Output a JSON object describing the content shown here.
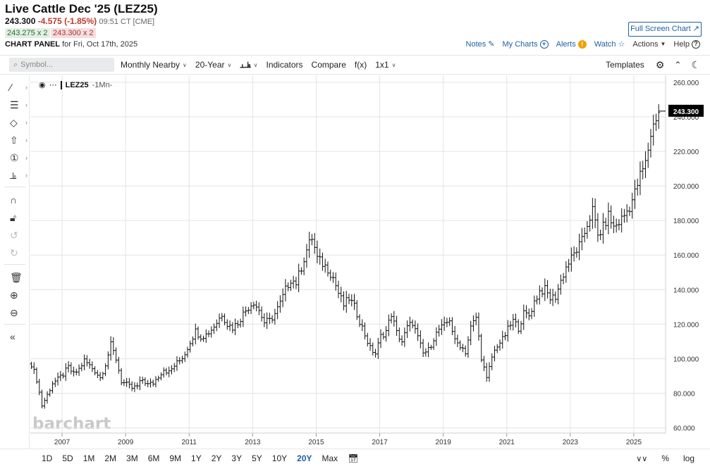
{
  "header": {
    "title": "Live Cattle Dec '25 (LEZ25)",
    "last": "243.300",
    "change": "-4.575 (-1.85%)",
    "time": "09:51 CT [CME]",
    "bid": "243.275 x 2",
    "ask": "243.300 x 2",
    "panel_label": "CHART PANEL",
    "panel_date": "for Fri, Oct 17th, 2025"
  },
  "actions": {
    "fullscreen": "Full Screen Chart",
    "notes": "Notes",
    "my_charts": "My Charts",
    "alerts": "Alerts",
    "watch": "Watch",
    "actions": "Actions",
    "help": "Help"
  },
  "toolbar": {
    "search_placeholder": "Symbol...",
    "period": "Monthly Nearby",
    "range": "20-Year",
    "indicators": "Indicators",
    "compare": "Compare",
    "fx": "f(x)",
    "layout": "1x1",
    "templates": "Templates"
  },
  "legend": {
    "symbol": "LEZ25",
    "period": "-1Mn-"
  },
  "watermark": "barchart",
  "ranges": [
    "1D",
    "5D",
    "1M",
    "2M",
    "3M",
    "6M",
    "9M",
    "1Y",
    "2Y",
    "3Y",
    "5Y",
    "10Y",
    "20Y",
    "Max"
  ],
  "active_range": "20Y",
  "bottom_right": {
    "percent": "%",
    "log": "log"
  },
  "colors": {
    "accent": "#1e5fa8",
    "down": "#c0392b",
    "bar": "#111111",
    "price_tag": "#000000"
  },
  "chart_data": {
    "type": "bar",
    "subtype": "ohlc",
    "period": "monthly",
    "x_ticks": [
      "2007",
      "2009",
      "2011",
      "2013",
      "2015",
      "2017",
      "2019",
      "2021",
      "2023",
      "2025"
    ],
    "y_ticks": [
      "60.000",
      "80.000",
      "100.000",
      "120.000",
      "140.000",
      "160.000",
      "180.000",
      "200.000",
      "220.000",
      "240.000",
      "260.000"
    ],
    "ylim": [
      57,
      264
    ],
    "xlim": [
      "2006-01",
      "2025-12"
    ],
    "last_price_label": "243.300",
    "grid": true,
    "series": [
      {
        "values": [
          {
            "t": "2006-01",
            "c": 97
          },
          {
            "t": "2006-03",
            "c": 88
          },
          {
            "t": "2006-05",
            "c": 73
          },
          {
            "t": "2006-07",
            "c": 79
          },
          {
            "t": "2006-09",
            "c": 86
          },
          {
            "t": "2006-11",
            "c": 88
          },
          {
            "t": "2007-01",
            "c": 91
          },
          {
            "t": "2007-03",
            "c": 95
          },
          {
            "t": "2007-05",
            "c": 91
          },
          {
            "t": "2007-07",
            "c": 94
          },
          {
            "t": "2007-09",
            "c": 99
          },
          {
            "t": "2007-11",
            "c": 96
          },
          {
            "t": "2008-01",
            "c": 93
          },
          {
            "t": "2008-03",
            "c": 89
          },
          {
            "t": "2008-05",
            "c": 97
          },
          {
            "t": "2008-07",
            "c": 108
          },
          {
            "t": "2008-09",
            "c": 100
          },
          {
            "t": "2008-11",
            "c": 87
          },
          {
            "t": "2009-01",
            "c": 85
          },
          {
            "t": "2009-03",
            "c": 83
          },
          {
            "t": "2009-05",
            "c": 84
          },
          {
            "t": "2009-07",
            "c": 88
          },
          {
            "t": "2009-09",
            "c": 85
          },
          {
            "t": "2009-11",
            "c": 86
          },
          {
            "t": "2010-01",
            "c": 90
          },
          {
            "t": "2010-03",
            "c": 94
          },
          {
            "t": "2010-05",
            "c": 92
          },
          {
            "t": "2010-07",
            "c": 96
          },
          {
            "t": "2010-09",
            "c": 99
          },
          {
            "t": "2010-11",
            "c": 103
          },
          {
            "t": "2011-01",
            "c": 110
          },
          {
            "t": "2011-03",
            "c": 116
          },
          {
            "t": "2011-05",
            "c": 113
          },
          {
            "t": "2011-07",
            "c": 114
          },
          {
            "t": "2011-09",
            "c": 117
          },
          {
            "t": "2011-11",
            "c": 121
          },
          {
            "t": "2012-01",
            "c": 126
          },
          {
            "t": "2012-03",
            "c": 120
          },
          {
            "t": "2012-05",
            "c": 118
          },
          {
            "t": "2012-07",
            "c": 121
          },
          {
            "t": "2012-09",
            "c": 126
          },
          {
            "t": "2012-11",
            "c": 130
          },
          {
            "t": "2013-01",
            "c": 133
          },
          {
            "t": "2013-03",
            "c": 128
          },
          {
            "t": "2013-05",
            "c": 121
          },
          {
            "t": "2013-07",
            "c": 122
          },
          {
            "t": "2013-09",
            "c": 126
          },
          {
            "t": "2013-11",
            "c": 132
          },
          {
            "t": "2014-01",
            "c": 140
          },
          {
            "t": "2014-03",
            "c": 146
          },
          {
            "t": "2014-05",
            "c": 144
          },
          {
            "t": "2014-07",
            "c": 153
          },
          {
            "t": "2014-09",
            "c": 163
          },
          {
            "t": "2014-11",
            "c": 170
          },
          {
            "t": "2015-01",
            "c": 158
          },
          {
            "t": "2015-03",
            "c": 155
          },
          {
            "t": "2015-05",
            "c": 152
          },
          {
            "t": "2015-07",
            "c": 147
          },
          {
            "t": "2015-09",
            "c": 138
          },
          {
            "t": "2015-11",
            "c": 131
          },
          {
            "t": "2016-01",
            "c": 135
          },
          {
            "t": "2016-03",
            "c": 130
          },
          {
            "t": "2016-05",
            "c": 122
          },
          {
            "t": "2016-07",
            "c": 114
          },
          {
            "t": "2016-09",
            "c": 106
          },
          {
            "t": "2016-11",
            "c": 103
          },
          {
            "t": "2017-01",
            "c": 113
          },
          {
            "t": "2017-03",
            "c": 116
          },
          {
            "t": "2017-05",
            "c": 126
          },
          {
            "t": "2017-07",
            "c": 115
          },
          {
            "t": "2017-09",
            "c": 110
          },
          {
            "t": "2017-11",
            "c": 118
          },
          {
            "t": "2018-01",
            "c": 121
          },
          {
            "t": "2018-03",
            "c": 112
          },
          {
            "t": "2018-05",
            "c": 103
          },
          {
            "t": "2018-07",
            "c": 105
          },
          {
            "t": "2018-09",
            "c": 112
          },
          {
            "t": "2018-11",
            "c": 117
          },
          {
            "t": "2019-01",
            "c": 119
          },
          {
            "t": "2019-03",
            "c": 123
          },
          {
            "t": "2019-05",
            "c": 110
          },
          {
            "t": "2019-07",
            "c": 108
          },
          {
            "t": "2019-09",
            "c": 104
          },
          {
            "t": "2019-11",
            "c": 118
          },
          {
            "t": "2020-01",
            "c": 124
          },
          {
            "t": "2020-03",
            "c": 101
          },
          {
            "t": "2020-05",
            "c": 88
          },
          {
            "t": "2020-07",
            "c": 101
          },
          {
            "t": "2020-09",
            "c": 108
          },
          {
            "t": "2020-11",
            "c": 111
          },
          {
            "t": "2021-01",
            "c": 117
          },
          {
            "t": "2021-03",
            "c": 122
          },
          {
            "t": "2021-05",
            "c": 118
          },
          {
            "t": "2021-07",
            "c": 126
          },
          {
            "t": "2021-09",
            "c": 125
          },
          {
            "t": "2021-11",
            "c": 133
          },
          {
            "t": "2022-01",
            "c": 139
          },
          {
            "t": "2022-03",
            "c": 140
          },
          {
            "t": "2022-05",
            "c": 135
          },
          {
            "t": "2022-07",
            "c": 136
          },
          {
            "t": "2022-09",
            "c": 145
          },
          {
            "t": "2022-11",
            "c": 153
          },
          {
            "t": "2023-01",
            "c": 158
          },
          {
            "t": "2023-03",
            "c": 163
          },
          {
            "t": "2023-05",
            "c": 168
          },
          {
            "t": "2023-07",
            "c": 178
          },
          {
            "t": "2023-09",
            "c": 186
          },
          {
            "t": "2023-11",
            "c": 171
          },
          {
            "t": "2024-01",
            "c": 176
          },
          {
            "t": "2024-03",
            "c": 183
          },
          {
            "t": "2024-05",
            "c": 176
          },
          {
            "t": "2024-07",
            "c": 179
          },
          {
            "t": "2024-09",
            "c": 183
          },
          {
            "t": "2024-11",
            "c": 188
          },
          {
            "t": "2025-01",
            "c": 196
          },
          {
            "t": "2025-03",
            "c": 206
          },
          {
            "t": "2025-05",
            "c": 213
          },
          {
            "t": "2025-07",
            "c": 230
          },
          {
            "t": "2025-09",
            "c": 240
          },
          {
            "t": "2025-10",
            "c": 243.3
          }
        ]
      }
    ]
  }
}
